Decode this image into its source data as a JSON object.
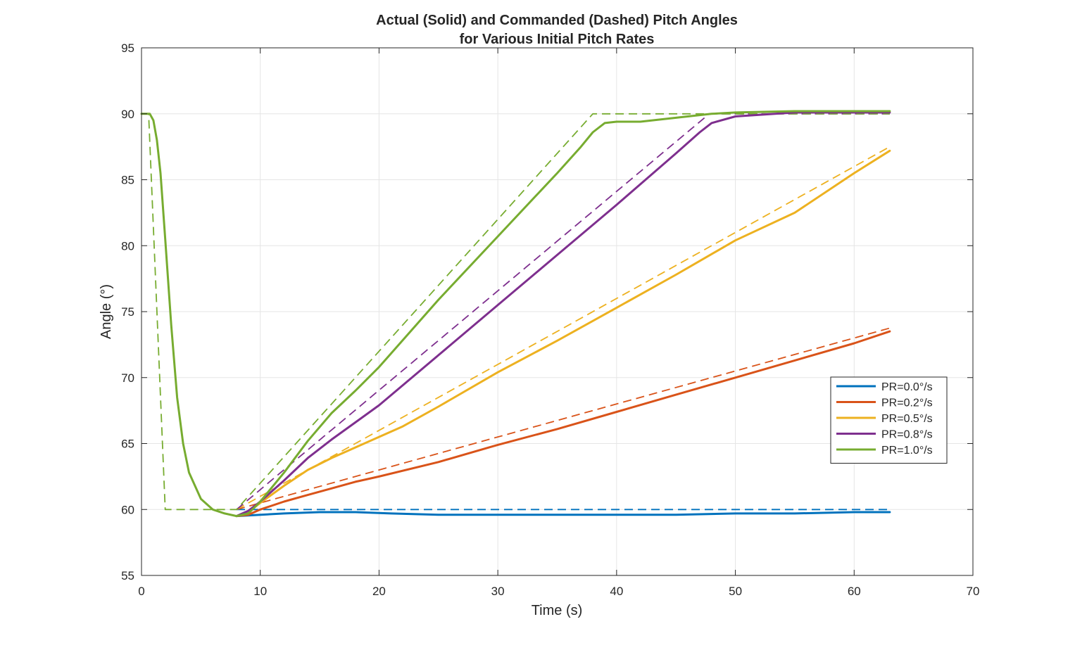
{
  "chart_data": {
    "type": "line",
    "title": "Actual (Solid) and Commanded (Dashed) Pitch Angles",
    "subtitle": "for Various Initial Pitch Rates",
    "xlabel": "Time (s)",
    "ylabel": "Angle (°)",
    "xlim": [
      0,
      70
    ],
    "ylim": [
      55,
      95
    ],
    "xticks": [
      "0",
      "10",
      "20",
      "30",
      "40",
      "50",
      "60",
      "70"
    ],
    "yticks": [
      "55",
      "60",
      "65",
      "70",
      "75",
      "80",
      "85",
      "90",
      "95"
    ],
    "grid": true,
    "legend_position": "right",
    "series": [
      {
        "name": "PR=0.0°/s",
        "color": "#0072BD",
        "actual": [
          [
            8,
            59.5
          ],
          [
            12,
            59.7
          ],
          [
            15,
            59.8
          ],
          [
            18,
            59.8
          ],
          [
            21,
            59.7
          ],
          [
            25,
            59.6
          ],
          [
            30,
            59.6
          ],
          [
            35,
            59.6
          ],
          [
            40,
            59.6
          ],
          [
            45,
            59.6
          ],
          [
            50,
            59.7
          ],
          [
            55,
            59.7
          ],
          [
            60,
            59.8
          ],
          [
            63,
            59.8
          ]
        ],
        "commanded": [
          [
            8,
            60
          ],
          [
            63,
            60
          ]
        ]
      },
      {
        "name": "PR=0.2°/s",
        "color": "#D95319",
        "actual": [
          [
            8,
            59.5
          ],
          [
            9,
            59.6
          ],
          [
            10,
            60.0
          ],
          [
            12,
            60.6
          ],
          [
            14,
            61.1
          ],
          [
            16,
            61.6
          ],
          [
            18,
            62.1
          ],
          [
            20,
            62.5
          ],
          [
            25,
            63.6
          ],
          [
            30,
            64.9
          ],
          [
            35,
            66.1
          ],
          [
            40,
            67.4
          ],
          [
            45,
            68.7
          ],
          [
            50,
            70.0
          ],
          [
            55,
            71.3
          ],
          [
            60,
            72.6
          ],
          [
            63,
            73.5
          ]
        ],
        "commanded": [
          [
            8,
            60
          ],
          [
            63,
            73.75
          ]
        ]
      },
      {
        "name": "PR=0.5°/s",
        "color": "#EDB120",
        "actual": [
          [
            8,
            59.5
          ],
          [
            9,
            59.8
          ],
          [
            10,
            60.5
          ],
          [
            12,
            61.8
          ],
          [
            14,
            63.0
          ],
          [
            16,
            63.9
          ],
          [
            18,
            64.7
          ],
          [
            20,
            65.5
          ],
          [
            22,
            66.3
          ],
          [
            25,
            67.8
          ],
          [
            30,
            70.4
          ],
          [
            35,
            72.8
          ],
          [
            40,
            75.3
          ],
          [
            45,
            77.8
          ],
          [
            50,
            80.4
          ],
          [
            55,
            82.5
          ],
          [
            60,
            85.5
          ],
          [
            63,
            87.2
          ]
        ],
        "commanded": [
          [
            8,
            60
          ],
          [
            63,
            87.5
          ]
        ]
      },
      {
        "name": "PR=0.8°/s",
        "color": "#7E2F8E",
        "actual": [
          [
            8,
            59.5
          ],
          [
            9,
            59.9
          ],
          [
            10,
            60.6
          ],
          [
            12,
            62.2
          ],
          [
            14,
            63.9
          ],
          [
            16,
            65.3
          ],
          [
            18,
            66.6
          ],
          [
            20,
            67.9
          ],
          [
            25,
            71.7
          ],
          [
            30,
            75.5
          ],
          [
            35,
            79.3
          ],
          [
            40,
            83.1
          ],
          [
            45,
            87.0
          ],
          [
            47,
            88.6
          ],
          [
            48,
            89.3
          ],
          [
            50,
            89.8
          ],
          [
            55,
            90.1
          ],
          [
            63,
            90.1
          ]
        ],
        "commanded": [
          [
            8,
            60
          ],
          [
            47.8,
            90
          ],
          [
            63,
            90
          ]
        ]
      },
      {
        "name": "PR=1.0°/s",
        "color": "#77AC30",
        "actual": [
          [
            0,
            90
          ],
          [
            0.7,
            90
          ],
          [
            1.0,
            89.5
          ],
          [
            1.3,
            88.0
          ],
          [
            1.6,
            85.5
          ],
          [
            2.0,
            80.5
          ],
          [
            2.5,
            74.0
          ],
          [
            3.0,
            68.5
          ],
          [
            3.5,
            65.0
          ],
          [
            4.0,
            62.8
          ],
          [
            5.0,
            60.8
          ],
          [
            6.0,
            60.0
          ],
          [
            7.0,
            59.7
          ],
          [
            8.0,
            59.5
          ],
          [
            9.0,
            59.7
          ],
          [
            10.0,
            60.6
          ],
          [
            12.0,
            62.8
          ],
          [
            14.0,
            65.2
          ],
          [
            16.0,
            67.3
          ],
          [
            18.0,
            69.0
          ],
          [
            20.0,
            70.8
          ],
          [
            25.0,
            75.9
          ],
          [
            30.0,
            80.7
          ],
          [
            35.0,
            85.5
          ],
          [
            37.0,
            87.5
          ],
          [
            38.0,
            88.6
          ],
          [
            39.0,
            89.3
          ],
          [
            40.0,
            89.4
          ],
          [
            42.0,
            89.4
          ],
          [
            45.0,
            89.7
          ],
          [
            48.0,
            90.0
          ],
          [
            50.0,
            90.1
          ],
          [
            55.0,
            90.2
          ],
          [
            63.0,
            90.2
          ]
        ],
        "commanded": [
          [
            0,
            90
          ],
          [
            0.6,
            90
          ],
          [
            2.0,
            60
          ],
          [
            8,
            60
          ],
          [
            38,
            90
          ],
          [
            63,
            90
          ]
        ]
      }
    ]
  }
}
